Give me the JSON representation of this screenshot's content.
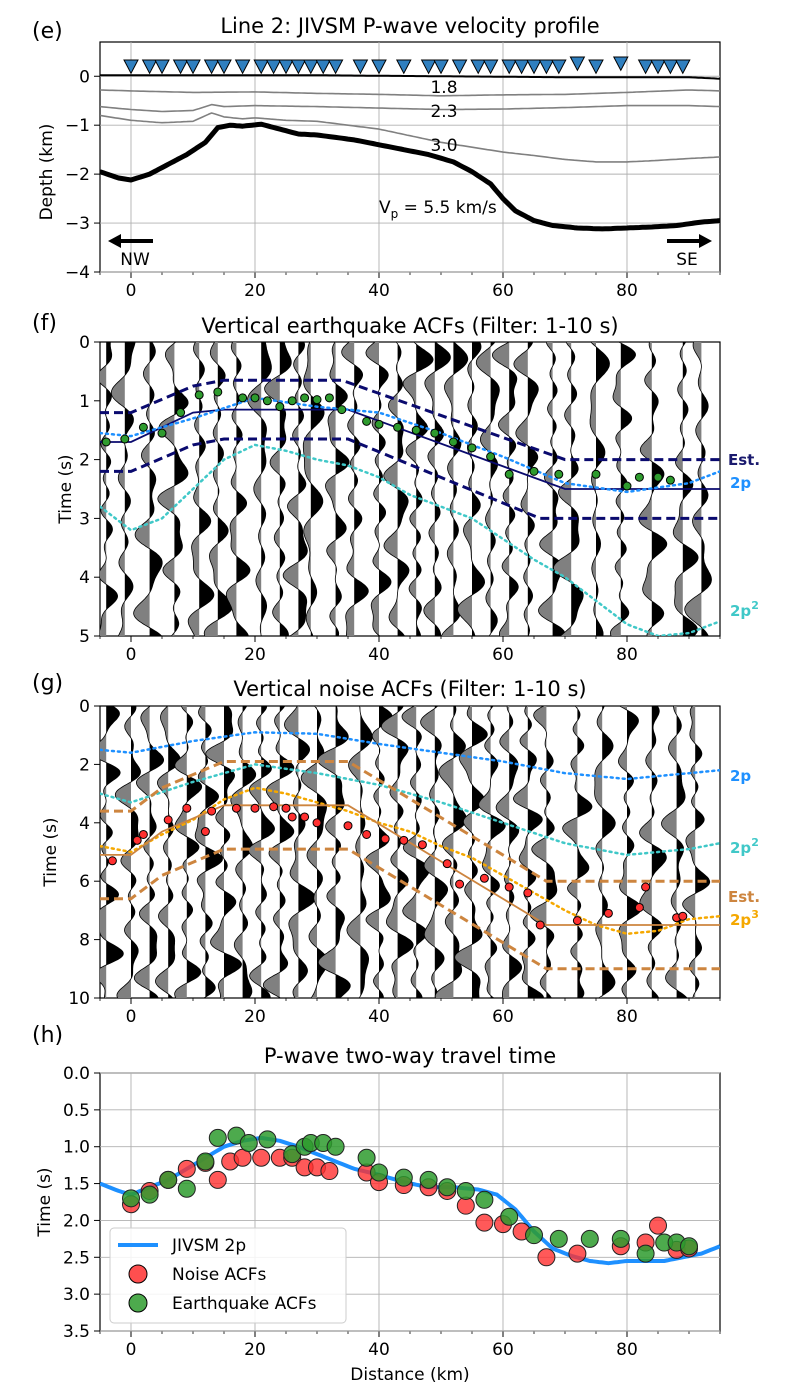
{
  "panels": {
    "e": {
      "letter": "(e)",
      "title": "Line 2: JIVSM P-wave velocity profile",
      "ylabel": "Depth (km)",
      "layer_labels": [
        "1.8",
        "2.3",
        "3.0"
      ],
      "vp_label": "V",
      "vp_sub": "p",
      "vp_rest": " = 5.5 km/s",
      "dir_left": "NW",
      "dir_right": "SE"
    },
    "f": {
      "letter": "(f)",
      "title": "Vertical earthquake ACFs (Filter: 1-10 s)",
      "ylabel": "Time (s)",
      "right_labels": [
        {
          "text": "Est.",
          "color": "#1a1a6e"
        },
        {
          "text": "2p",
          "color": "#1e90ff"
        },
        {
          "text": "2p",
          "sup": "2",
          "color": "#40c8c8"
        }
      ]
    },
    "g": {
      "letter": "(g)",
      "title": "Vertical noise ACFs (Filter: 1-10 s)",
      "ylabel": "Time (s)",
      "right_labels": [
        {
          "text": "2p",
          "color": "#1e90ff"
        },
        {
          "text": "2p",
          "sup": "2",
          "color": "#40c8c8"
        },
        {
          "text": "Est.",
          "color": "#cd853f"
        },
        {
          "text": "2p",
          "sup": "3",
          "color": "#f5a800"
        }
      ]
    },
    "h": {
      "letter": "(h)",
      "title": "P-wave two-way travel time",
      "ylabel": "Time (s)",
      "xlabel": "Distance (km)",
      "legend": [
        "JIVSM 2p",
        "Noise ACFs",
        "Earthquake ACFs"
      ]
    }
  },
  "colors": {
    "station": "#2f7fbf",
    "basement": "#000000",
    "layers": "#808080",
    "est_f": "#0a0a6e",
    "p2": "#1e90ff",
    "p2sq": "#40c8c8",
    "est_g": "#cd853f",
    "p2cube": "#f5a800",
    "green": "#2e9b2e",
    "red": "#ff3030",
    "trace_gray": "#808080"
  },
  "chart_data": [
    {
      "type": "line",
      "panel": "e",
      "xlim": [
        -5,
        95
      ],
      "ylim": [
        -4,
        0.7
      ],
      "xticks": [
        0,
        20,
        40,
        60,
        80
      ],
      "yticks": [
        0,
        -1,
        -2,
        -3,
        -4
      ],
      "ytick_labels": [
        "0",
        "−1",
        "−2",
        "−3",
        "−4"
      ],
      "grid": true,
      "stations_x": [
        0,
        3,
        6,
        9,
        11,
        14,
        17,
        20,
        23,
        26,
        29,
        31,
        33,
        36,
        38,
        41,
        44,
        47,
        50,
        53,
        56,
        59,
        62,
        65,
        68,
        72,
        75,
        79,
        83,
        86,
        89,
        92,
        95
      ],
      "stations_x_shown": [
        0,
        3,
        5,
        8,
        10,
        13,
        15,
        18,
        21,
        23,
        25,
        27,
        29,
        31,
        33,
        37,
        40,
        44,
        48,
        50,
        53,
        56,
        58,
        61,
        63,
        65,
        67,
        69,
        72,
        75,
        79,
        83,
        85,
        87,
        89
      ],
      "series": [
        {
          "name": "surface",
          "x": [
            -5,
            10,
            30,
            50,
            70,
            80,
            90,
            95
          ],
          "y": [
            0.02,
            0.02,
            0.02,
            0.0,
            -0.02,
            -0.02,
            -0.02,
            -0.05
          ]
        },
        {
          "name": "1.8",
          "x": [
            -5,
            0,
            10,
            20,
            30,
            40,
            50,
            60,
            70,
            80,
            90,
            95
          ],
          "y": [
            -0.28,
            -0.3,
            -0.33,
            -0.32,
            -0.35,
            -0.37,
            -0.4,
            -0.38,
            -0.37,
            -0.33,
            -0.28,
            -0.3
          ]
        },
        {
          "name": "2.3",
          "x": [
            -5,
            0,
            5,
            10,
            13,
            15,
            20,
            30,
            40,
            50,
            60,
            70,
            80,
            90,
            95
          ],
          "y": [
            -0.62,
            -0.68,
            -0.72,
            -0.7,
            -0.58,
            -0.62,
            -0.6,
            -0.62,
            -0.65,
            -0.68,
            -0.67,
            -0.64,
            -0.6,
            -0.6,
            -0.62
          ]
        },
        {
          "name": "3.0",
          "x": [
            -5,
            0,
            5,
            10,
            13,
            15,
            18,
            20,
            25,
            30,
            40,
            50,
            60,
            65,
            70,
            75,
            80,
            85,
            90,
            95
          ],
          "y": [
            -0.8,
            -0.9,
            -0.95,
            -0.92,
            -0.75,
            -0.83,
            -0.87,
            -0.85,
            -0.9,
            -0.92,
            -1.08,
            -1.35,
            -1.55,
            -1.62,
            -1.7,
            -1.75,
            -1.75,
            -1.72,
            -1.68,
            -1.65
          ]
        },
        {
          "name": "5.5",
          "x": [
            -5,
            -2,
            0,
            3,
            6,
            9,
            12,
            14,
            16,
            18,
            21,
            24,
            27,
            30,
            33,
            36,
            40,
            44,
            48,
            52,
            55,
            58,
            60,
            62,
            65,
            68,
            72,
            76,
            80,
            84,
            88,
            92,
            95
          ],
          "y": [
            -1.95,
            -2.08,
            -2.12,
            -2.0,
            -1.8,
            -1.6,
            -1.35,
            -1.05,
            -1.0,
            -1.02,
            -0.98,
            -1.08,
            -1.18,
            -1.2,
            -1.25,
            -1.3,
            -1.4,
            -1.5,
            -1.6,
            -1.75,
            -1.95,
            -2.2,
            -2.5,
            -2.75,
            -2.95,
            -3.05,
            -3.1,
            -3.12,
            -3.1,
            -3.08,
            -3.05,
            -2.98,
            -2.95
          ]
        }
      ]
    },
    {
      "type": "line",
      "panel": "f",
      "xlim": [
        -5,
        95
      ],
      "ylim": [
        5,
        0
      ],
      "xticks": [
        0,
        20,
        40,
        60,
        80
      ],
      "yticks": [
        0,
        1,
        2,
        3,
        4,
        5
      ],
      "traces_x": [
        -4,
        -1,
        3,
        7,
        11,
        14,
        17,
        21,
        24,
        27,
        29,
        33,
        36,
        40,
        43,
        46,
        49,
        52,
        55,
        58,
        61,
        64,
        68,
        71,
        75,
        79,
        84,
        89,
        92
      ],
      "series": [
        {
          "name": "Est.",
          "x": [
            -5,
            0,
            10,
            15,
            35,
            70,
            95
          ],
          "y": [
            1.7,
            1.7,
            1.2,
            1.15,
            1.15,
            2.5,
            2.5
          ]
        },
        {
          "name": "Est. upper",
          "x": [
            -5,
            0,
            10,
            15,
            34,
            70,
            95
          ],
          "y": [
            1.2,
            1.2,
            0.75,
            0.65,
            0.65,
            2.0,
            2.0
          ]
        },
        {
          "name": "Est. lower",
          "x": [
            -5,
            0,
            10,
            15,
            35,
            66,
            95
          ],
          "y": [
            2.2,
            2.2,
            1.75,
            1.65,
            1.65,
            3.0,
            3.0
          ]
        },
        {
          "name": "2p",
          "x": [
            -5,
            0,
            10,
            20,
            30,
            40,
            50,
            60,
            70,
            80,
            90,
            95
          ],
          "y": [
            1.55,
            1.6,
            1.3,
            0.95,
            1.1,
            1.2,
            1.55,
            1.95,
            2.4,
            2.55,
            2.4,
            2.2
          ]
        },
        {
          "name": "2p^2",
          "x": [
            -5,
            0,
            5,
            10,
            15,
            20,
            25,
            30,
            35,
            40,
            45,
            50,
            55,
            60,
            65,
            70,
            75,
            80,
            85,
            90,
            95
          ],
          "y": [
            2.8,
            3.2,
            3.0,
            2.5,
            2.0,
            1.75,
            1.85,
            2.0,
            2.1,
            2.3,
            2.6,
            2.8,
            3.0,
            3.35,
            3.7,
            4.0,
            4.4,
            4.8,
            5.0,
            4.95,
            4.75
          ]
        },
        {
          "name": "picks",
          "x": [
            -4,
            -1,
            2,
            5,
            8,
            11,
            14,
            18,
            20,
            22,
            24,
            26,
            28,
            30,
            32,
            34,
            38,
            40,
            43,
            46,
            49,
            52,
            55,
            58,
            61,
            65,
            69,
            75,
            80,
            82,
            85,
            87
          ],
          "y": [
            1.7,
            1.65,
            1.45,
            1.55,
            1.2,
            0.9,
            0.85,
            0.95,
            0.95,
            1.0,
            1.1,
            1.0,
            0.95,
            0.98,
            0.95,
            1.15,
            1.35,
            1.4,
            1.45,
            1.5,
            1.55,
            1.7,
            1.8,
            1.95,
            2.25,
            2.2,
            2.25,
            2.25,
            2.45,
            2.3,
            2.3,
            2.35
          ]
        }
      ]
    },
    {
      "type": "line",
      "panel": "g",
      "xlim": [
        -5,
        95
      ],
      "ylim": [
        10,
        0
      ],
      "xticks": [
        0,
        20,
        40,
        60,
        80
      ],
      "yticks": [
        0,
        2,
        4,
        6,
        8,
        10
      ],
      "traces_x": [
        -4,
        0,
        3,
        6,
        9,
        12,
        15,
        18,
        21,
        24,
        27,
        30,
        33,
        37,
        40,
        43,
        46,
        49,
        52,
        55,
        58,
        61,
        64,
        67,
        72,
        76,
        80,
        84,
        88,
        91
      ],
      "series": [
        {
          "name": "2p",
          "x": [
            -5,
            0,
            10,
            20,
            30,
            40,
            50,
            60,
            70,
            80,
            90,
            95
          ],
          "y": [
            1.5,
            1.6,
            1.2,
            0.9,
            0.95,
            1.3,
            1.6,
            1.9,
            2.3,
            2.5,
            2.3,
            2.2
          ]
        },
        {
          "name": "2p^2",
          "x": [
            -5,
            0,
            10,
            20,
            30,
            40,
            50,
            60,
            70,
            80,
            90,
            95
          ],
          "y": [
            3.0,
            3.3,
            2.6,
            2.0,
            2.3,
            2.7,
            3.3,
            4.0,
            4.7,
            5.1,
            4.9,
            4.7
          ]
        },
        {
          "name": "2p^3",
          "x": [
            -5,
            0,
            5,
            10,
            15,
            20,
            25,
            30,
            35,
            40,
            45,
            50,
            55,
            60,
            65,
            70,
            75,
            80,
            85,
            90,
            95
          ],
          "y": [
            4.8,
            5.0,
            4.4,
            3.9,
            3.2,
            2.8,
            3.0,
            3.3,
            3.6,
            4.0,
            4.3,
            4.8,
            5.2,
            5.8,
            6.4,
            7.0,
            7.5,
            7.8,
            7.7,
            7.3,
            7.2
          ]
        },
        {
          "name": "Est.",
          "x": [
            -5,
            0,
            5,
            15,
            35,
            67,
            95
          ],
          "y": [
            5.1,
            5.1,
            4.3,
            3.4,
            3.4,
            7.5,
            7.5
          ]
        },
        {
          "name": "Est. upper",
          "x": [
            -5,
            0,
            5,
            15,
            35,
            67,
            95
          ],
          "y": [
            3.6,
            3.6,
            2.8,
            1.9,
            1.9,
            6.0,
            6.0
          ]
        },
        {
          "name": "Est. lower",
          "x": [
            -5,
            0,
            5,
            15,
            35,
            67,
            95
          ],
          "y": [
            6.6,
            6.6,
            5.8,
            4.9,
            4.9,
            9.0,
            9.0
          ]
        },
        {
          "name": "picks",
          "x": [
            -3,
            1,
            2,
            6,
            9,
            12,
            13,
            17,
            20,
            23,
            25,
            26,
            28,
            30,
            35,
            38,
            41,
            44,
            47,
            51,
            53,
            57,
            61,
            64,
            66,
            72,
            77,
            82,
            83,
            88,
            89
          ],
          "y": [
            5.3,
            4.6,
            4.4,
            3.9,
            3.5,
            4.3,
            3.6,
            3.5,
            3.5,
            3.45,
            3.5,
            3.8,
            3.8,
            4.0,
            4.1,
            4.4,
            4.55,
            4.6,
            4.75,
            5.4,
            6.1,
            5.9,
            6.2,
            6.4,
            7.5,
            7.35,
            7.1,
            6.9,
            6.2,
            7.25,
            7.2
          ]
        }
      ]
    },
    {
      "type": "scatter",
      "panel": "h",
      "xlim": [
        -5,
        95
      ],
      "ylim": [
        3.5,
        0
      ],
      "xticks": [
        0,
        20,
        40,
        60,
        80
      ],
      "yticks": [
        0.0,
        0.5,
        1.0,
        1.5,
        2.0,
        2.5,
        3.0,
        3.5
      ],
      "ytick_labels": [
        "0.0",
        "0.5",
        "1.0",
        "1.5",
        "2.0",
        "2.5",
        "3.0",
        "3.5"
      ],
      "grid": true,
      "legend_position": "lower-left",
      "series": [
        {
          "name": "JIVSM 2p",
          "x": [
            -5,
            -2,
            0,
            3,
            6,
            9,
            12,
            15,
            18,
            21,
            24,
            27,
            30,
            33,
            36,
            40,
            44,
            48,
            52,
            56,
            59,
            62,
            65,
            68,
            71,
            74,
            77,
            80,
            83,
            86,
            89,
            92,
            95
          ],
          "y": [
            1.5,
            1.6,
            1.65,
            1.55,
            1.45,
            1.3,
            1.15,
            1.0,
            0.92,
            0.88,
            0.92,
            1.0,
            1.1,
            1.2,
            1.3,
            1.38,
            1.48,
            1.55,
            1.55,
            1.58,
            1.65,
            1.85,
            2.15,
            2.38,
            2.48,
            2.55,
            2.58,
            2.55,
            2.55,
            2.55,
            2.5,
            2.45,
            2.35
          ]
        },
        {
          "name": "Noise ACFs",
          "x": [
            0,
            3,
            6,
            9,
            12,
            14,
            16,
            18,
            21,
            24,
            26,
            28,
            30,
            32,
            38,
            40,
            44,
            48,
            51,
            54,
            57,
            60,
            63,
            67,
            72,
            79,
            83,
            85,
            88,
            90
          ],
          "y": [
            1.78,
            1.6,
            1.45,
            1.3,
            1.22,
            1.45,
            1.2,
            1.15,
            1.15,
            1.15,
            1.15,
            1.28,
            1.28,
            1.33,
            1.35,
            1.48,
            1.52,
            1.55,
            1.6,
            1.8,
            2.03,
            2.05,
            2.15,
            2.5,
            2.45,
            2.35,
            2.3,
            2.07,
            2.4,
            2.38
          ]
        },
        {
          "name": "Earthquake ACFs",
          "x": [
            0,
            3,
            6,
            9,
            12,
            14,
            17,
            19,
            22,
            26,
            28,
            29,
            31,
            33,
            38,
            40,
            44,
            48,
            51,
            54,
            57,
            61,
            65,
            69,
            74,
            79,
            83,
            86,
            88,
            90
          ],
          "y": [
            1.7,
            1.65,
            1.45,
            1.57,
            1.2,
            0.88,
            0.85,
            0.95,
            0.9,
            1.1,
            1.0,
            0.95,
            0.95,
            1.0,
            1.15,
            1.35,
            1.42,
            1.45,
            1.55,
            1.6,
            1.72,
            1.95,
            2.2,
            2.25,
            2.25,
            2.25,
            2.45,
            2.3,
            2.3,
            2.35
          ]
        }
      ]
    }
  ]
}
